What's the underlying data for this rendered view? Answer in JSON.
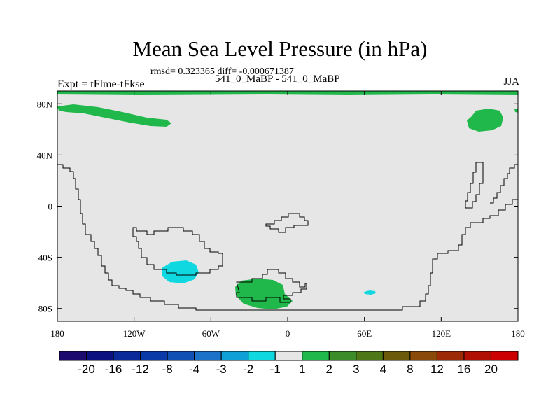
{
  "chart_data": {
    "type": "heatmap",
    "title": "Mean Sea Level Pressure (in hPa)",
    "stats": "rmsd= 0.323365 diff= -0.000671387",
    "left_label": "Expt = tFlme-tFkse",
    "subtitle": "541_0_MaBP - 541_0_MaBP",
    "season": "JJA",
    "x_range": [
      -180,
      180
    ],
    "y_range": [
      -90,
      90
    ],
    "x_ticks": [
      {
        "value": -180,
        "label": "180"
      },
      {
        "value": -120,
        "label": "120W"
      },
      {
        "value": -60,
        "label": "60W"
      },
      {
        "value": 0,
        "label": "0"
      },
      {
        "value": 60,
        "label": "60E"
      },
      {
        "value": 120,
        "label": "120E"
      },
      {
        "value": 180,
        "label": "180"
      }
    ],
    "y_ticks": [
      {
        "value": 80,
        "label": "80N"
      },
      {
        "value": 40,
        "label": "40N"
      },
      {
        "value": 0,
        "label": "0"
      },
      {
        "value": -40,
        "label": "40S"
      },
      {
        "value": -80,
        "label": "80S"
      }
    ],
    "colorbar": {
      "labels": [
        "-20",
        "-16",
        "-12",
        "-8",
        "-4",
        "-3",
        "-2",
        "-1",
        "1",
        "2",
        "3",
        "4",
        "8",
        "12",
        "16",
        "20"
      ],
      "colors": [
        "#1d0a6e",
        "#0b1280",
        "#0a2a9a",
        "#0a3aa8",
        "#1050b4",
        "#1c72c8",
        "#10a0d8",
        "#10d8e0",
        "#e6e6e6",
        "#20b84a",
        "#3c8c2a",
        "#4e7818",
        "#6a5a0a",
        "#8a4a0a",
        "#9c2a06",
        "#b01004",
        "#cc0000"
      ]
    },
    "anomaly_regions": [
      {
        "value_band": "1 to 2",
        "color": "#20b84a",
        "description": "Arctic band",
        "lon": [
          -180,
          180
        ],
        "lat": [
          88,
          90
        ]
      },
      {
        "value_band": "1 to 2",
        "color": "#20b84a",
        "description": "North Pacific high latitudes",
        "lon": [
          -180,
          -90
        ],
        "lat": [
          72,
          80
        ]
      },
      {
        "value_band": "1 to 2",
        "color": "#20b84a",
        "description": "Northeast Asia",
        "lon": [
          140,
          165
        ],
        "lat": [
          68,
          82
        ]
      },
      {
        "value_band": "1 to 2",
        "color": "#20b84a",
        "description": "South Atlantic / Antarctic margin",
        "lon": [
          -42,
          -3
        ],
        "lat": [
          -82,
          -57
        ]
      },
      {
        "value_band": "-2 to -1",
        "color": "#10d8e0",
        "description": "South Pacific",
        "lon": [
          -98,
          -70
        ],
        "lat": [
          -60,
          -43
        ]
      },
      {
        "value_band": "-2 to -1",
        "color": "#10d8e0",
        "description": "Southern Indian Ocean",
        "lon": [
          58,
          68
        ],
        "lat": [
          -68,
          -64
        ]
      }
    ]
  }
}
